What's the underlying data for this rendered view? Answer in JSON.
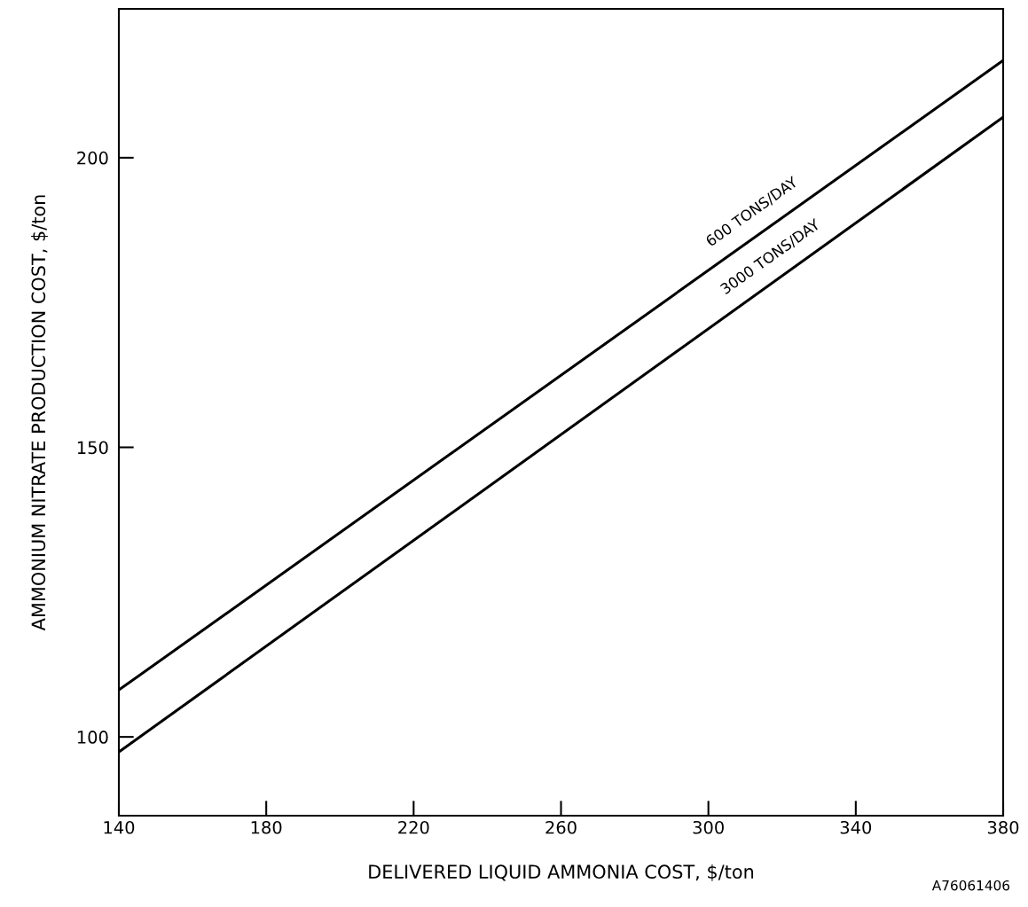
{
  "chart_data": {
    "type": "line",
    "xlabel": "DELIVERED LIQUID AMMONIA COST, $/ton",
    "ylabel": "AMMONIUM NITRATE PRODUCTION COST, $/ton",
    "x": [
      140,
      380
    ],
    "series": [
      {
        "color": "#000000",
        "values": [
          108.1,
          216.8
        ]
      },
      {
        "color": "#000000",
        "values": [
          97.4,
          207.0
        ]
      }
    ],
    "xlim": [
      140,
      380
    ],
    "xticks": [
      140,
      180,
      220,
      260,
      300,
      340,
      380
    ],
    "ylim": [
      86.4,
      225.7
    ],
    "yticks": [
      100,
      150,
      200
    ],
    "grid": false,
    "marker": "none",
    "line_style": "solid",
    "annotations": [
      {
        "text": "600 TONS/DAY",
        "x": 315,
        "y": 187.4
      },
      {
        "text": "3000 TONS/DAY",
        "x": 320,
        "y": 179.6
      },
      "A76061406"
    ]
  }
}
